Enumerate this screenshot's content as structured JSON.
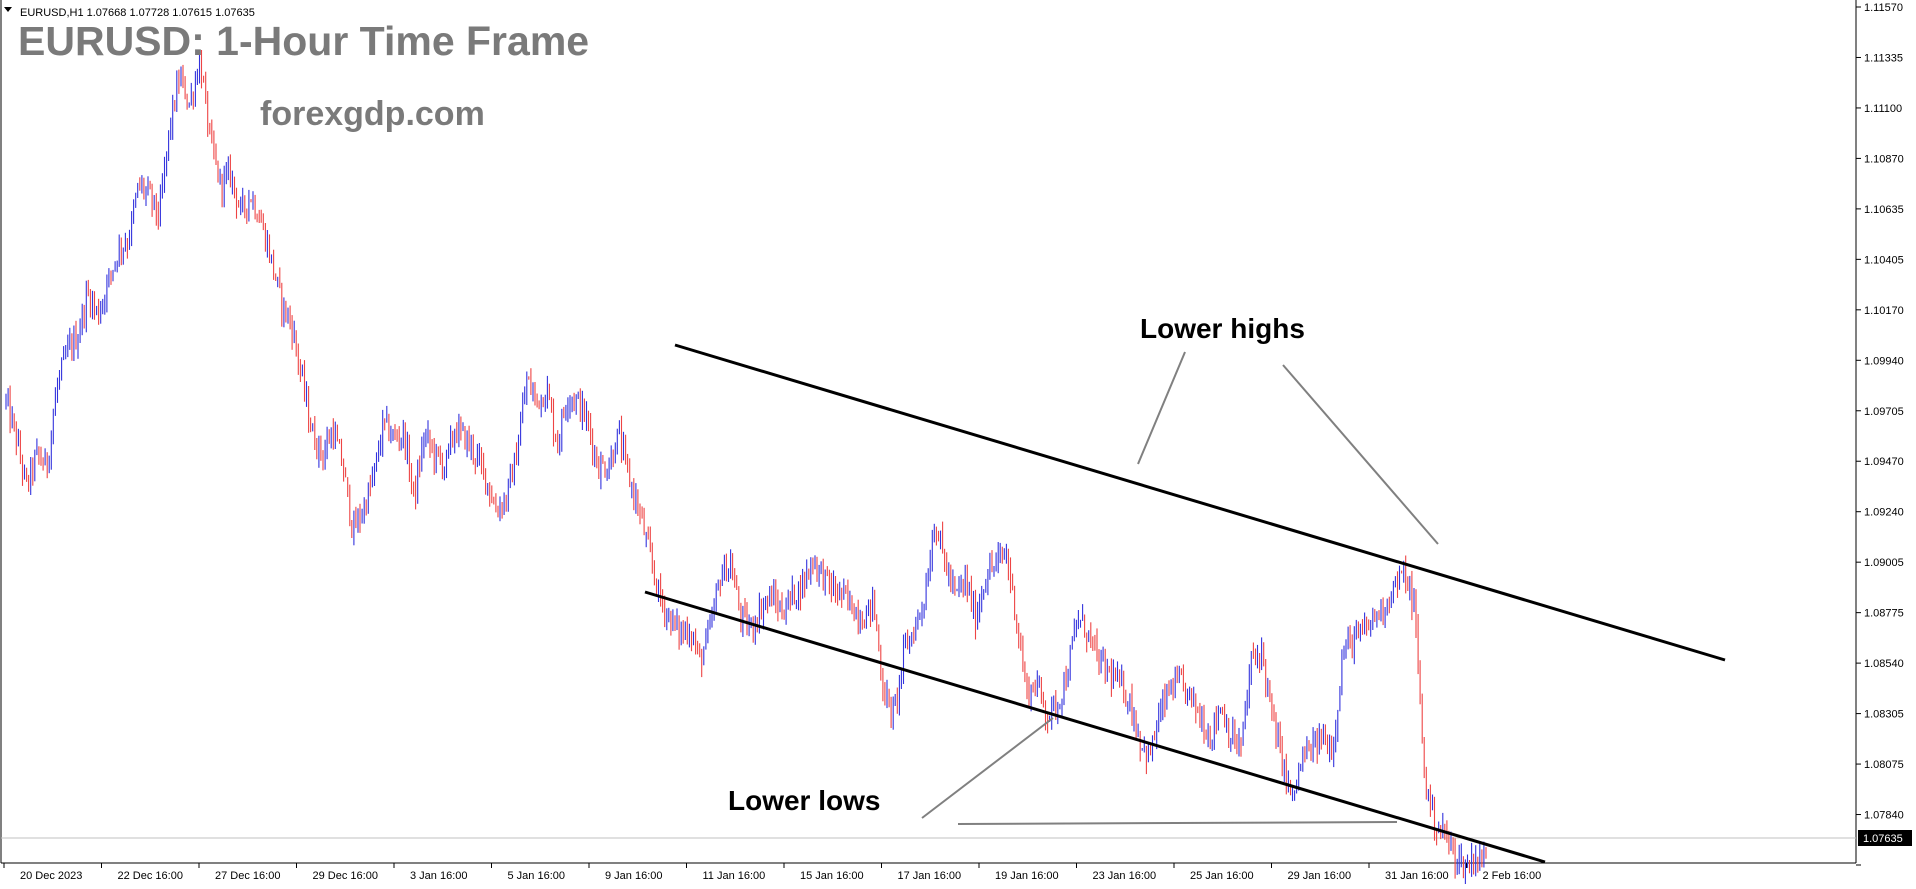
{
  "header": {
    "symbol_info": "EURUSD,H1  1.07668 1.07728 1.07615 1.07635"
  },
  "overlay": {
    "title": "EURUSD: 1-Hour Time Frame",
    "watermark": "forexgdp.com",
    "annotation_highs": "Lower highs",
    "annotation_lows": "Lower lows"
  },
  "colors": {
    "bull_candle": "#3333dd",
    "bear_candle": "#ee4444",
    "trendline": "#000000",
    "pointer": "#808080",
    "title_text": "#7a7a7a",
    "price_badge_bg": "#000000"
  },
  "chart_data": {
    "type": "candlestick",
    "symbol": "EURUSD",
    "timeframe": "H1",
    "ohlc_last": {
      "open": 1.07668,
      "high": 1.07728,
      "low": 1.07615,
      "close": 1.07635
    },
    "current_price": "1.07635",
    "ylim": [
      1.0761,
      1.1157
    ],
    "y_ticks": [
      "1.11570",
      "1.11335",
      "1.11100",
      "1.10870",
      "1.10635",
      "1.10405",
      "1.10170",
      "1.09940",
      "1.09705",
      "1.09470",
      "1.09240",
      "1.09005",
      "1.08775",
      "1.08540",
      "1.08305",
      "1.08075",
      "1.07840",
      "1.07610"
    ],
    "x_ticks": [
      "20 Dec 2023",
      "22 Dec 16:00",
      "27 Dec 16:00",
      "29 Dec 16:00",
      "3 Jan 16:00",
      "5 Jan 16:00",
      "9 Jan 16:00",
      "11 Jan 16:00",
      "15 Jan 16:00",
      "17 Jan 16:00",
      "19 Jan 16:00",
      "23 Jan 16:00",
      "25 Jan 16:00",
      "29 Jan 16:00",
      "31 Jan 16:00",
      "2 Feb 16:00"
    ],
    "grid": false,
    "trendlines": [
      {
        "name": "upper channel",
        "from": {
          "date": "11 Jan 16:00",
          "price": 1.0996
        },
        "to": {
          "date": "6 Feb",
          "price": 1.0853
        }
      },
      {
        "name": "lower channel",
        "from": {
          "date": "11 Jan 00:00",
          "price": 1.0879
        },
        "to": {
          "date": "5 Feb",
          "price": 1.0757
        }
      }
    ],
    "swing_points": [
      {
        "label": "high",
        "date": "9 Jan 20:00",
        "price": 1.0998
      },
      {
        "label": "high",
        "date": "24 Jan 09:00",
        "price": 1.0935
      },
      {
        "label": "high",
        "date": "1 Feb 20:00",
        "price": 1.0899
      },
      {
        "label": "low",
        "date": "17 Jan 14:00",
        "price": 1.0844
      },
      {
        "label": "low",
        "date": "23 Jan 16:00",
        "price": 1.0821
      },
      {
        "label": "low",
        "date": "2 Feb 20:00",
        "price": 1.0763
      }
    ],
    "price_path": [
      [
        1.0975,
        1.0958,
        1.0935,
        1.095,
        1.0945
      ],
      [
        1.0982,
        1.0998,
        1.1005,
        1.1025,
        1.1015,
        1.103,
        1.1045
      ],
      [
        1.105,
        1.1075,
        1.107,
        1.106,
        1.11,
        1.1125,
        1.1112,
        1.1133
      ],
      [
        1.1095,
        1.1075,
        1.108,
        1.1062,
        1.107,
        1.1058,
        1.104,
        1.102,
        1.101,
        1.0985,
        1.096,
        1.095
      ],
      [
        1.0962,
        1.0945,
        1.0915,
        1.0925,
        1.094,
        1.0965,
        1.0958,
        1.096,
        1.093
      ],
      [
        1.096,
        1.095,
        1.0945,
        1.0962,
        1.0958,
        1.095,
        1.094,
        1.0925,
        1.093,
        1.095,
        1.0985
      ],
      [
        1.0975,
        1.098,
        1.0955,
        1.0978,
        1.0975,
        1.0965,
        1.0945,
        1.0945,
        1.096
      ],
      [
        1.094,
        1.0925,
        1.0905,
        1.0885,
        1.0875,
        1.0868,
        1.087,
        1.0855
      ],
      [
        1.087,
        1.0895,
        1.09,
        1.0875,
        1.087,
        1.088,
        1.0885,
        1.0878,
        1.0885
      ],
      [
        1.089,
        1.0902,
        1.0895,
        1.0888,
        1.0885,
        1.088,
        1.0875,
        1.0882
      ],
      [
        1.084,
        1.083,
        1.086,
        1.087,
        1.0885,
        1.092,
        1.09,
        1.0885,
        1.0892,
        1.0875
      ],
      [
        1.0895,
        1.09,
        1.0905,
        1.0875,
        1.084,
        1.0845,
        1.083,
        1.0835
      ],
      [
        1.085,
        1.0875,
        1.0868,
        1.0855,
        1.085,
        1.0845,
        1.0838,
        1.082,
        1.081
      ],
      [
        1.083,
        1.0842,
        1.0845,
        1.0838,
        1.083,
        1.082,
        1.0835,
        1.082
      ],
      [
        1.0815,
        1.0855,
        1.086,
        1.083,
        1.081,
        1.079,
        1.081,
        1.0815,
        1.082,
        1.0815
      ],
      [
        1.086,
        1.0865,
        1.0868,
        1.0875,
        1.088,
        1.089,
        1.0895,
        1.088
      ],
      [
        1.08,
        1.078,
        1.0775,
        1.0765,
        1.076,
        1.0765,
        1.0763
      ]
    ]
  }
}
